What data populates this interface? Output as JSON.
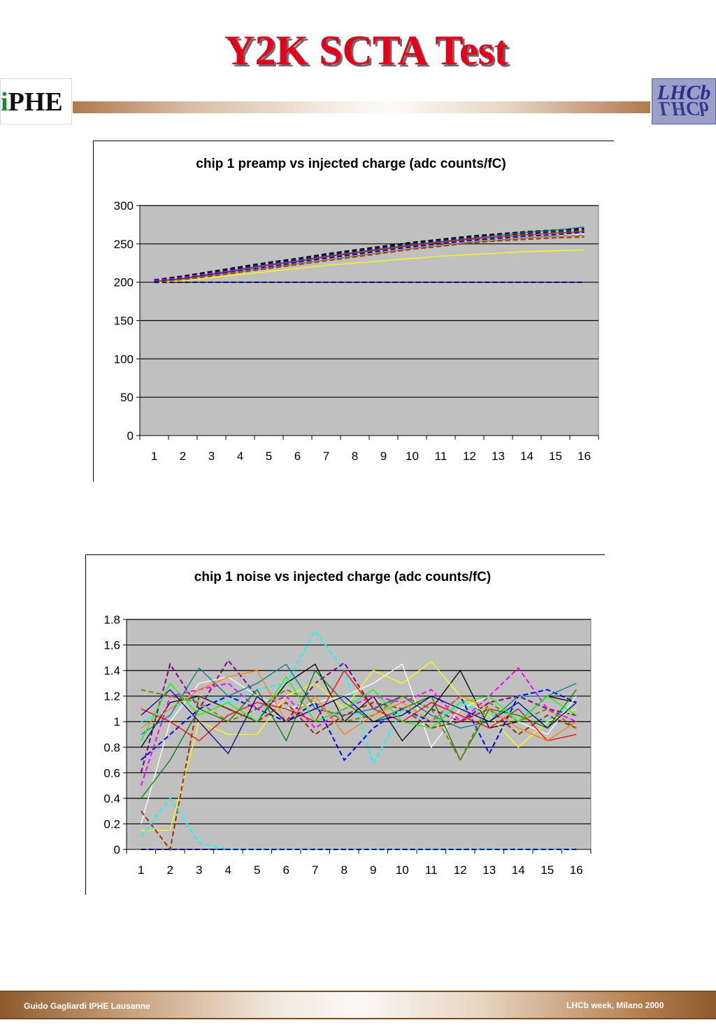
{
  "slide": {
    "title": "Y2K SCTA Test",
    "logo_left_text_i": "i",
    "logo_left_text_rest": "PHE",
    "logo_right_text": "LHCb",
    "footer_left": "Guido Gagliardi  IPHE Lausanne",
    "footer_right": "LHCb week, Milano 2000"
  },
  "chart_data": [
    {
      "type": "line",
      "title": "chip 1 preamp vs injected charge (adc counts/fC)",
      "xlabel": "",
      "ylabel": "",
      "categories": [
        "1",
        "2",
        "3",
        "4",
        "5",
        "6",
        "7",
        "8",
        "9",
        "10",
        "11",
        "12",
        "13",
        "14",
        "15",
        "16"
      ],
      "ylim": [
        0,
        300
      ],
      "yticks": [
        "0",
        "50",
        "100",
        "150",
        "200",
        "250",
        "300"
      ],
      "grid": true,
      "legend": "none",
      "background": "#c0c0c0",
      "series": [
        {
          "color": "#000000",
          "dash": true,
          "values": [
            203,
            208,
            214,
            220,
            226,
            231,
            237,
            242,
            247,
            252,
            256,
            260,
            263,
            266,
            268,
            270
          ]
        },
        {
          "color": "#000080",
          "dash": true,
          "values": [
            202,
            206,
            212,
            218,
            224,
            229,
            235,
            240,
            245,
            250,
            254,
            258,
            261,
            264,
            266,
            268
          ]
        },
        {
          "color": "#008080",
          "dash": false,
          "values": [
            201,
            205,
            211,
            217,
            223,
            228,
            234,
            239,
            244,
            249,
            253,
            257,
            261,
            265,
            268,
            272
          ]
        },
        {
          "color": "#008000",
          "dash": true,
          "values": [
            200,
            204,
            209,
            215,
            221,
            226,
            232,
            237,
            242,
            247,
            251,
            255,
            259,
            262,
            265,
            267
          ]
        },
        {
          "color": "#ff0000",
          "dash": false,
          "values": [
            201,
            205,
            210,
            216,
            222,
            227,
            233,
            238,
            243,
            248,
            252,
            256,
            259,
            262,
            264,
            266
          ]
        },
        {
          "color": "#ff00ff",
          "dash": true,
          "values": [
            202,
            206,
            211,
            216,
            221,
            226,
            231,
            236,
            241,
            246,
            250,
            254,
            257,
            260,
            262,
            264
          ]
        },
        {
          "color": "#ffffff",
          "dash": true,
          "values": [
            200,
            204,
            209,
            214,
            219,
            225,
            230,
            235,
            240,
            245,
            249,
            253,
            256,
            259,
            261,
            263
          ]
        },
        {
          "color": "#0000ff",
          "dash": true,
          "values": [
            201,
            205,
            210,
            215,
            220,
            226,
            231,
            236,
            241,
            246,
            250,
            254,
            257,
            260,
            262,
            265
          ]
        },
        {
          "color": "#993300",
          "dash": true,
          "values": [
            199,
            203,
            208,
            213,
            218,
            223,
            228,
            233,
            238,
            243,
            247,
            251,
            254,
            256,
            258,
            259
          ]
        },
        {
          "color": "#808000",
          "dash": false,
          "values": [
            200,
            204,
            209,
            214,
            219,
            224,
            229,
            234,
            239,
            244,
            248,
            252,
            255,
            258,
            260,
            261
          ]
        },
        {
          "color": "#ffff00",
          "dash": false,
          "values": [
            199,
            202,
            206,
            210,
            214,
            218,
            222,
            225,
            228,
            231,
            234,
            236,
            238,
            240,
            241,
            242
          ]
        },
        {
          "color": "#000080",
          "dash": true,
          "values": [
            200,
            200,
            200,
            200,
            200,
            200,
            200,
            200,
            200,
            200,
            200,
            200,
            200,
            200,
            200,
            200
          ]
        }
      ]
    },
    {
      "type": "line",
      "title": "chip 1 noise vs injected charge (adc counts/fC)",
      "xlabel": "",
      "ylabel": "",
      "categories": [
        "1",
        "2",
        "3",
        "4",
        "5",
        "6",
        "7",
        "8",
        "9",
        "10",
        "11",
        "12",
        "13",
        "14",
        "15",
        "16"
      ],
      "ylim": [
        0,
        1.8
      ],
      "yticks": [
        "0",
        "0.2",
        "0.4",
        "0.6",
        "0.8",
        "1",
        "1.2",
        "1.4",
        "1.6",
        "1.8"
      ],
      "grid": true,
      "legend": "none",
      "background": "#c0c0c0",
      "series": [
        {
          "color": "#00ffff",
          "dash": true,
          "values": [
            1.0,
            1.1,
            1.2,
            1.15,
            1.25,
            1.3,
            1.71,
            1.4,
            0.67,
            1.1,
            1.0,
            1.15,
            1.05,
            1.1,
            1.0,
            1.15
          ]
        },
        {
          "color": "#800080",
          "dash": true,
          "values": [
            0.6,
            1.45,
            1.1,
            1.48,
            1.2,
            1.0,
            1.3,
            1.46,
            1.1,
            1.2,
            1.1,
            1.0,
            1.15,
            1.2,
            1.1,
            1.05
          ]
        },
        {
          "color": "#000000",
          "dash": false,
          "values": [
            0.8,
            1.15,
            1.2,
            1.1,
            1.0,
            1.3,
            1.45,
            1.0,
            1.2,
            0.85,
            1.1,
            1.4,
            0.95,
            1.0,
            1.2,
            1.15
          ]
        },
        {
          "color": "#ffffff",
          "dash": false,
          "values": [
            0.2,
            1.0,
            1.3,
            1.35,
            1.2,
            1.1,
            1.15,
            1.2,
            1.3,
            1.45,
            0.8,
            1.1,
            1.2,
            1.0,
            0.9,
            1.2
          ]
        },
        {
          "color": "#ffff00",
          "dash": false,
          "values": [
            0.15,
            0.15,
            1.0,
            0.9,
            0.9,
            1.2,
            1.3,
            1.1,
            1.4,
            1.3,
            1.47,
            1.2,
            1.05,
            0.8,
            1.0,
            1.1
          ]
        },
        {
          "color": "#0000ff",
          "dash": true,
          "values": [
            0.7,
            0.9,
            1.1,
            1.2,
            1.1,
            1.0,
            1.15,
            0.7,
            0.95,
            1.1,
            1.0,
            1.2,
            0.75,
            1.2,
            1.25,
            1.15
          ]
        },
        {
          "color": "#ff00ff",
          "dash": true,
          "values": [
            0.5,
            1.2,
            1.25,
            1.3,
            1.1,
            1.2,
            0.95,
            1.1,
            1.2,
            1.15,
            1.25,
            1.0,
            1.2,
            1.42,
            1.1,
            1.0
          ]
        },
        {
          "color": "#008080",
          "dash": false,
          "values": [
            0.9,
            1.05,
            1.42,
            1.2,
            1.3,
            1.45,
            1.1,
            1.05,
            1.1,
            1.2,
            1.05,
            0.95,
            1.0,
            1.2,
            1.2,
            1.3
          ]
        },
        {
          "color": "#008000",
          "dash": false,
          "values": [
            0.4,
            0.7,
            1.1,
            1.0,
            1.25,
            0.85,
            1.4,
            1.15,
            1.0,
            1.1,
            1.2,
            0.7,
            1.1,
            1.05,
            0.95,
            1.25
          ]
        },
        {
          "color": "#ff0000",
          "dash": false,
          "values": [
            1.1,
            1.0,
            0.85,
            1.05,
            1.15,
            1.1,
            1.0,
            1.4,
            1.1,
            1.0,
            1.15,
            1.05,
            0.95,
            1.1,
            0.85,
            0.9
          ]
        },
        {
          "color": "#993300",
          "dash": true,
          "values": [
            0.3,
            0.0,
            1.2,
            1.1,
            1.0,
            1.15,
            0.9,
            1.05,
            1.15,
            1.1,
            0.95,
            1.0,
            1.1,
            0.9,
            1.05,
            0.95
          ]
        },
        {
          "color": "#808000",
          "dash": true,
          "values": [
            1.25,
            1.2,
            1.15,
            1.0,
            1.1,
            1.25,
            1.15,
            1.0,
            1.05,
            1.2,
            1.1,
            0.7,
            1.15,
            1.0,
            1.1,
            0.95
          ]
        },
        {
          "color": "#000080",
          "dash": false,
          "values": [
            1.05,
            1.25,
            1.0,
            0.75,
            1.2,
            1.0,
            1.1,
            1.2,
            1.0,
            1.05,
            1.2,
            1.1,
            1.0,
            1.15,
            0.95,
            1.15
          ]
        },
        {
          "color": "#00ff00",
          "dash": false,
          "values": [
            0.85,
            1.3,
            1.05,
            1.15,
            1.0,
            1.35,
            1.0,
            1.1,
            1.25,
            1.0,
            0.95,
            1.15,
            1.2,
            1.0,
            1.2,
            1.05
          ]
        },
        {
          "color": "#ff8000",
          "dash": false,
          "values": [
            0.95,
            1.1,
            1.25,
            1.35,
            1.4,
            1.0,
            1.2,
            0.9,
            1.05,
            1.15,
            1.0,
            1.2,
            1.1,
            0.95,
            0.85,
            1.0
          ]
        },
        {
          "color": "#00ffff",
          "dash": true,
          "values": [
            0.1,
            0.4,
            0.05,
            0.0,
            0.0,
            0.0,
            0.0,
            0.0,
            0.0,
            0.0,
            0.0,
            0.0,
            0.0,
            0.0,
            0.0,
            0.0
          ]
        },
        {
          "color": "#000080",
          "dash": true,
          "values": [
            0.0,
            0.0,
            0.0,
            0.0,
            0.0,
            0.0,
            0.0,
            0.0,
            0.0,
            0.0,
            0.0,
            0.0,
            0.0,
            0.0,
            0.0,
            0.0
          ]
        }
      ]
    }
  ]
}
